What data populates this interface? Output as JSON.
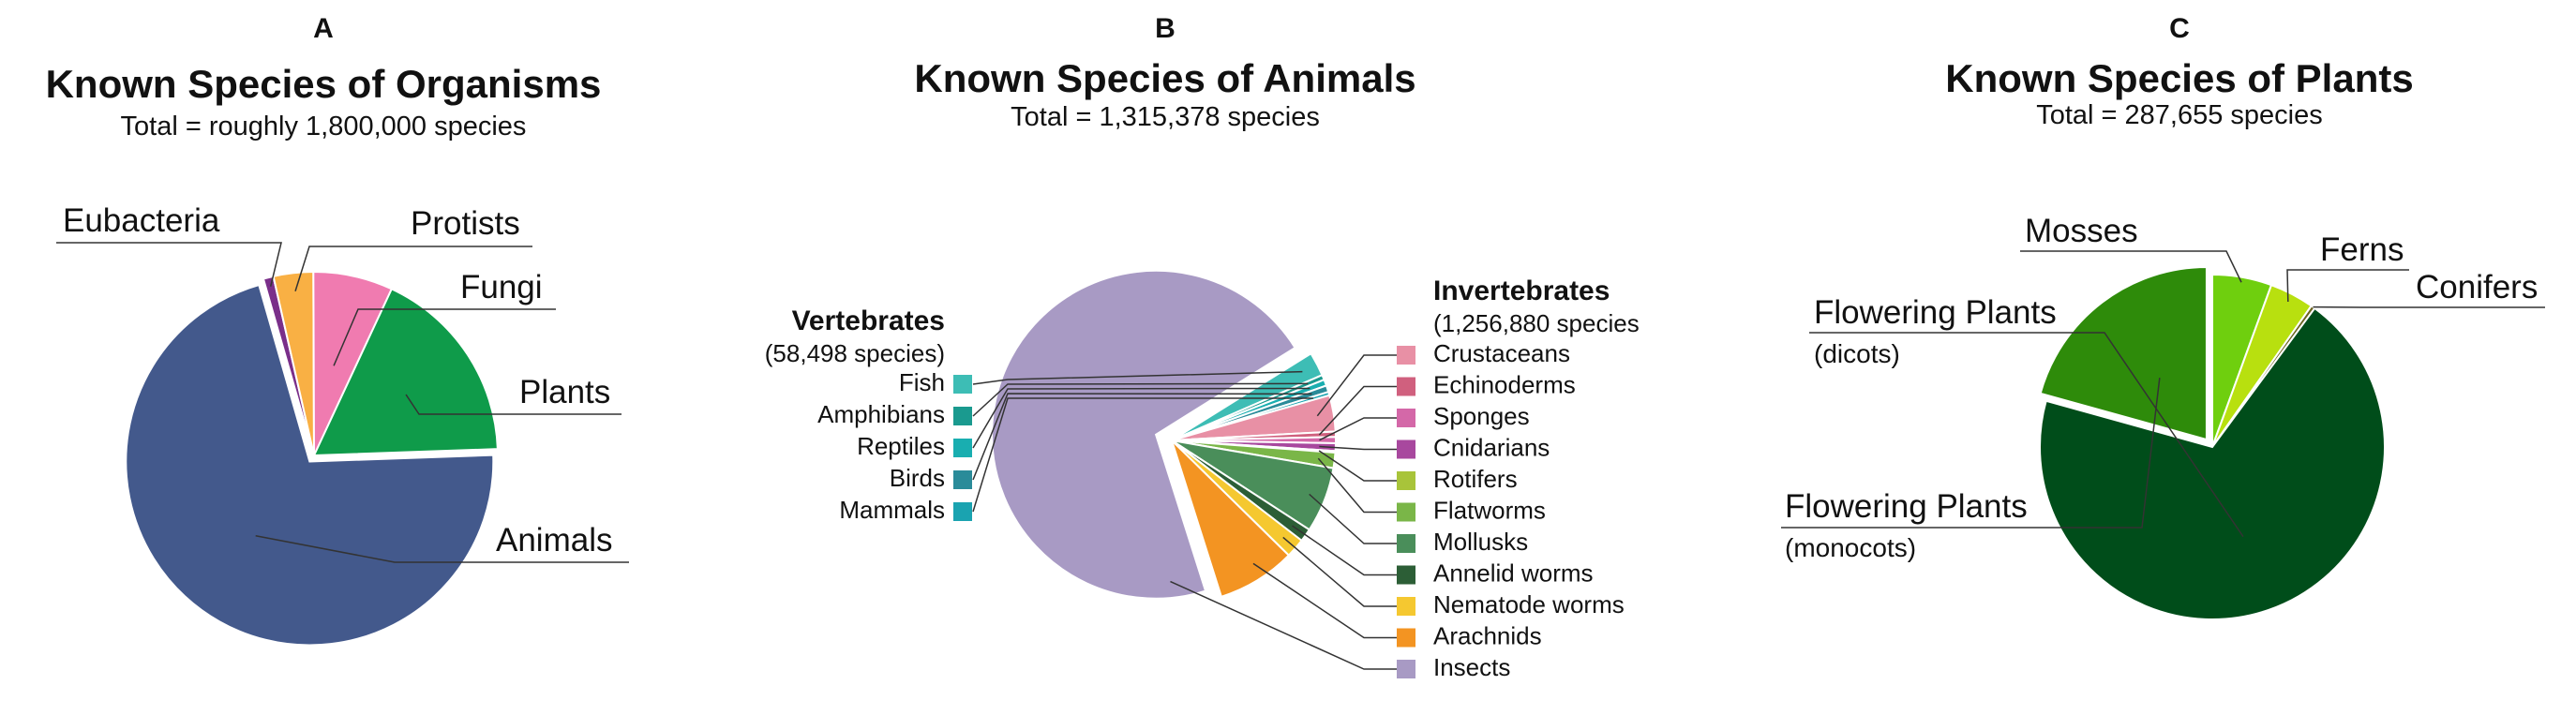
{
  "chart_data": [
    {
      "type": "pie",
      "panel": "A",
      "title": "Known Species of Organisms",
      "subtitle": "Total = roughly 1,800,000 species",
      "categories": [
        "Eubacteria",
        "Protists",
        "Fungi",
        "Plants",
        "Animals"
      ],
      "values": [
        16000,
        63000,
        126000,
        315000,
        1280000
      ],
      "colors": [
        "#7a2f8a",
        "#f9b044",
        "#f07bb0",
        "#0f9b4a",
        "#43598c"
      ]
    },
    {
      "type": "pie",
      "panel": "B",
      "title": "Known Species of Animals",
      "subtitle": "Total = 1,315,378 species",
      "groups": [
        {
          "name": "Vertebrates",
          "note": "(58,498 species)",
          "categories": [
            "Fish",
            "Amphibians",
            "Reptiles",
            "Birds",
            "Mammals"
          ],
          "values": [
            31000,
            6500,
            8000,
            8500,
            4500
          ],
          "colors": [
            "#3dbdb5",
            "#1a9a8f",
            "#19aeb0",
            "#2a8b99",
            "#1aa3b0"
          ]
        },
        {
          "name": "Invertebrates",
          "note": "(1,256,880 species",
          "categories": [
            "Crustaceans",
            "Echinoderms",
            "Sponges",
            "Cnidarians",
            "Rotifers",
            "Flatworms",
            "Mollusks",
            "Annelid worms",
            "Nematode worms",
            "Arachnids",
            "Insects"
          ],
          "values": [
            47000,
            7000,
            8000,
            10000,
            2000,
            20000,
            85000,
            17000,
            25000,
            102000,
            934000
          ],
          "colors": [
            "#e890a5",
            "#d0607e",
            "#d468a8",
            "#a8489e",
            "#a8c43a",
            "#7ab648",
            "#4a8e5a",
            "#2c5e36",
            "#f5c830",
            "#f39422",
            "#a89ac4"
          ]
        }
      ]
    },
    {
      "type": "pie",
      "panel": "C",
      "title": "Known Species of Plants",
      "subtitle": "Total = 287,655 species",
      "categories": [
        "Mosses",
        "Ferns",
        "Conifers",
        "Flowering Plants (dicots)",
        "Flowering Plants (monocots)"
      ],
      "values": [
        16000,
        12000,
        1100,
        199000,
        59500
      ],
      "colors": [
        "#6fcf0e",
        "#b8e00f",
        "#6b6420",
        "#004d1a",
        "#2e8b0a"
      ]
    }
  ]
}
